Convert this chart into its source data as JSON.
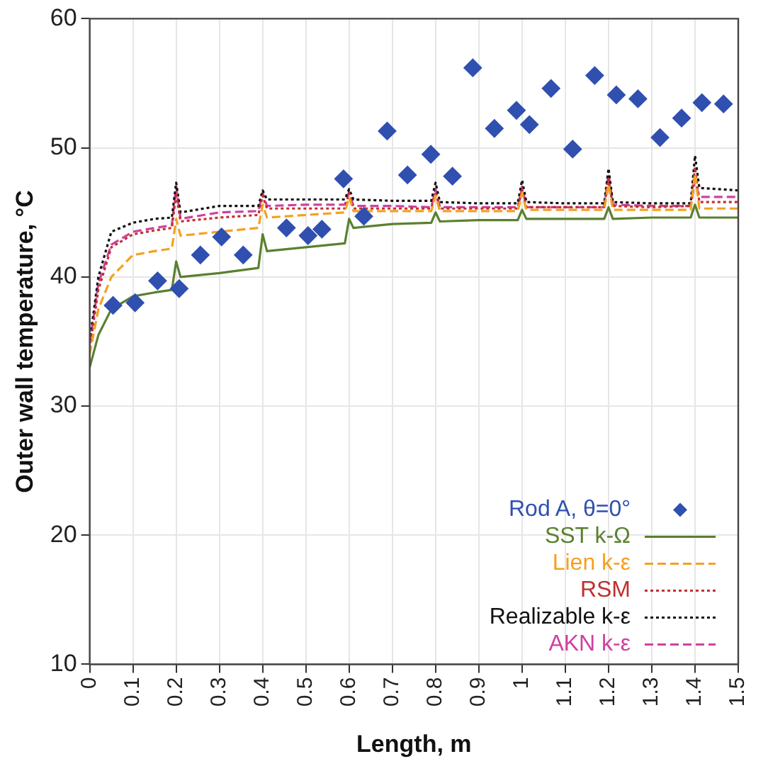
{
  "chart_data": {
    "type": "line",
    "xlabel": "Length, m",
    "ylabel": "Outer wall temperature, °C",
    "x": [
      0,
      0.02,
      0.05,
      0.1,
      0.15,
      0.19,
      0.2,
      0.21,
      0.3,
      0.39,
      0.4,
      0.41,
      0.5,
      0.59,
      0.6,
      0.61,
      0.7,
      0.79,
      0.8,
      0.81,
      0.9,
      0.99,
      1.0,
      1.01,
      1.1,
      1.19,
      1.2,
      1.21,
      1.3,
      1.39,
      1.4,
      1.41,
      1.5
    ],
    "series": [
      {
        "name": "Rod A, θ=0°",
        "type": "scatter",
        "marker": "diamond",
        "color": "#3050b0",
        "x": [
          0.054,
          0.105,
          0.157,
          0.207,
          0.256,
          0.305,
          0.355,
          0.455,
          0.505,
          0.537,
          0.587,
          0.634,
          0.688,
          0.735,
          0.789,
          0.839,
          0.886,
          0.936,
          0.987,
          1.017,
          1.067,
          1.117,
          1.168,
          1.218,
          1.268,
          1.319,
          1.369,
          1.416,
          1.466
        ],
        "values": [
          37.8,
          38.0,
          39.7,
          39.1,
          41.7,
          43.1,
          41.7,
          43.8,
          43.2,
          43.7,
          47.6,
          44.7,
          51.3,
          47.9,
          49.5,
          47.8,
          56.2,
          51.5,
          52.9,
          51.8,
          54.6,
          49.9,
          55.6,
          54.1,
          53.8,
          50.8,
          52.3,
          53.5,
          53.4
        ]
      },
      {
        "name": "SST k-Ω",
        "color": "#5a8030",
        "line_style": "solid",
        "values": [
          33.0,
          35.5,
          37.5,
          38.5,
          38.8,
          39.0,
          41.2,
          40.0,
          40.3,
          40.7,
          43.3,
          42.0,
          42.3,
          42.6,
          44.5,
          43.8,
          44.1,
          44.2,
          45.0,
          44.3,
          44.4,
          44.4,
          45.2,
          44.5,
          44.5,
          44.5,
          45.4,
          44.5,
          44.6,
          44.6,
          45.6,
          44.6,
          44.6
        ]
      },
      {
        "name": "Lien k-ε",
        "color": "#f5a020",
        "line_style": "dashed",
        "values": [
          34.0,
          37.5,
          40.0,
          41.7,
          42.0,
          42.2,
          44.5,
          43.2,
          43.5,
          43.8,
          45.6,
          44.6,
          44.8,
          45.0,
          46.2,
          45.1,
          45.1,
          45.1,
          46.3,
          45.1,
          45.1,
          45.1,
          46.5,
          45.2,
          45.2,
          45.2,
          47.2,
          45.2,
          45.2,
          45.2,
          48.0,
          45.3,
          45.3
        ]
      },
      {
        "name": "RSM",
        "color": "#c03030",
        "line_style": "dotted",
        "values": [
          34.5,
          39.0,
          42.3,
          43.3,
          43.6,
          43.8,
          46.5,
          44.3,
          44.6,
          44.8,
          46.3,
          45.3,
          45.3,
          45.3,
          46.5,
          45.3,
          45.3,
          45.3,
          46.6,
          45.3,
          45.3,
          45.3,
          46.8,
          45.4,
          45.4,
          45.4,
          47.6,
          45.5,
          45.4,
          45.5,
          48.5,
          45.8,
          45.8
        ]
      },
      {
        "name": "Realizable k-ε",
        "color": "#111111",
        "line_style": "dotted",
        "values": [
          35.0,
          40.0,
          43.5,
          44.2,
          44.5,
          44.6,
          47.3,
          45.0,
          45.5,
          45.5,
          46.7,
          46.0,
          46.0,
          46.0,
          46.8,
          46.0,
          45.9,
          45.9,
          47.3,
          45.8,
          45.7,
          45.7,
          47.5,
          45.8,
          45.7,
          45.7,
          48.4,
          45.8,
          45.7,
          45.7,
          49.4,
          46.9,
          46.7
        ]
      },
      {
        "name": "AKN k-ε",
        "color": "#d040a0",
        "line_style": "dashed",
        "values": [
          34.8,
          39.5,
          42.5,
          43.5,
          43.8,
          44.0,
          47.0,
          44.5,
          45.0,
          45.1,
          46.5,
          45.5,
          45.6,
          45.6,
          46.6,
          45.5,
          45.5,
          45.4,
          46.8,
          45.4,
          45.4,
          45.4,
          47.0,
          45.4,
          45.4,
          45.4,
          48.0,
          45.6,
          45.5,
          45.5,
          47.5,
          46.2,
          46.2
        ]
      }
    ],
    "xlim": [
      0,
      1.5
    ],
    "xticks": [
      0,
      0.1,
      0.2,
      0.3,
      0.4,
      0.5,
      0.6,
      0.7,
      0.8,
      0.9,
      1,
      1.1,
      1.2,
      1.3,
      1.4,
      1.5
    ],
    "ylim": [
      10,
      60
    ],
    "yticks": [
      10,
      20,
      30,
      40,
      50,
      60
    ],
    "grid": true,
    "legend": "bottom right"
  }
}
